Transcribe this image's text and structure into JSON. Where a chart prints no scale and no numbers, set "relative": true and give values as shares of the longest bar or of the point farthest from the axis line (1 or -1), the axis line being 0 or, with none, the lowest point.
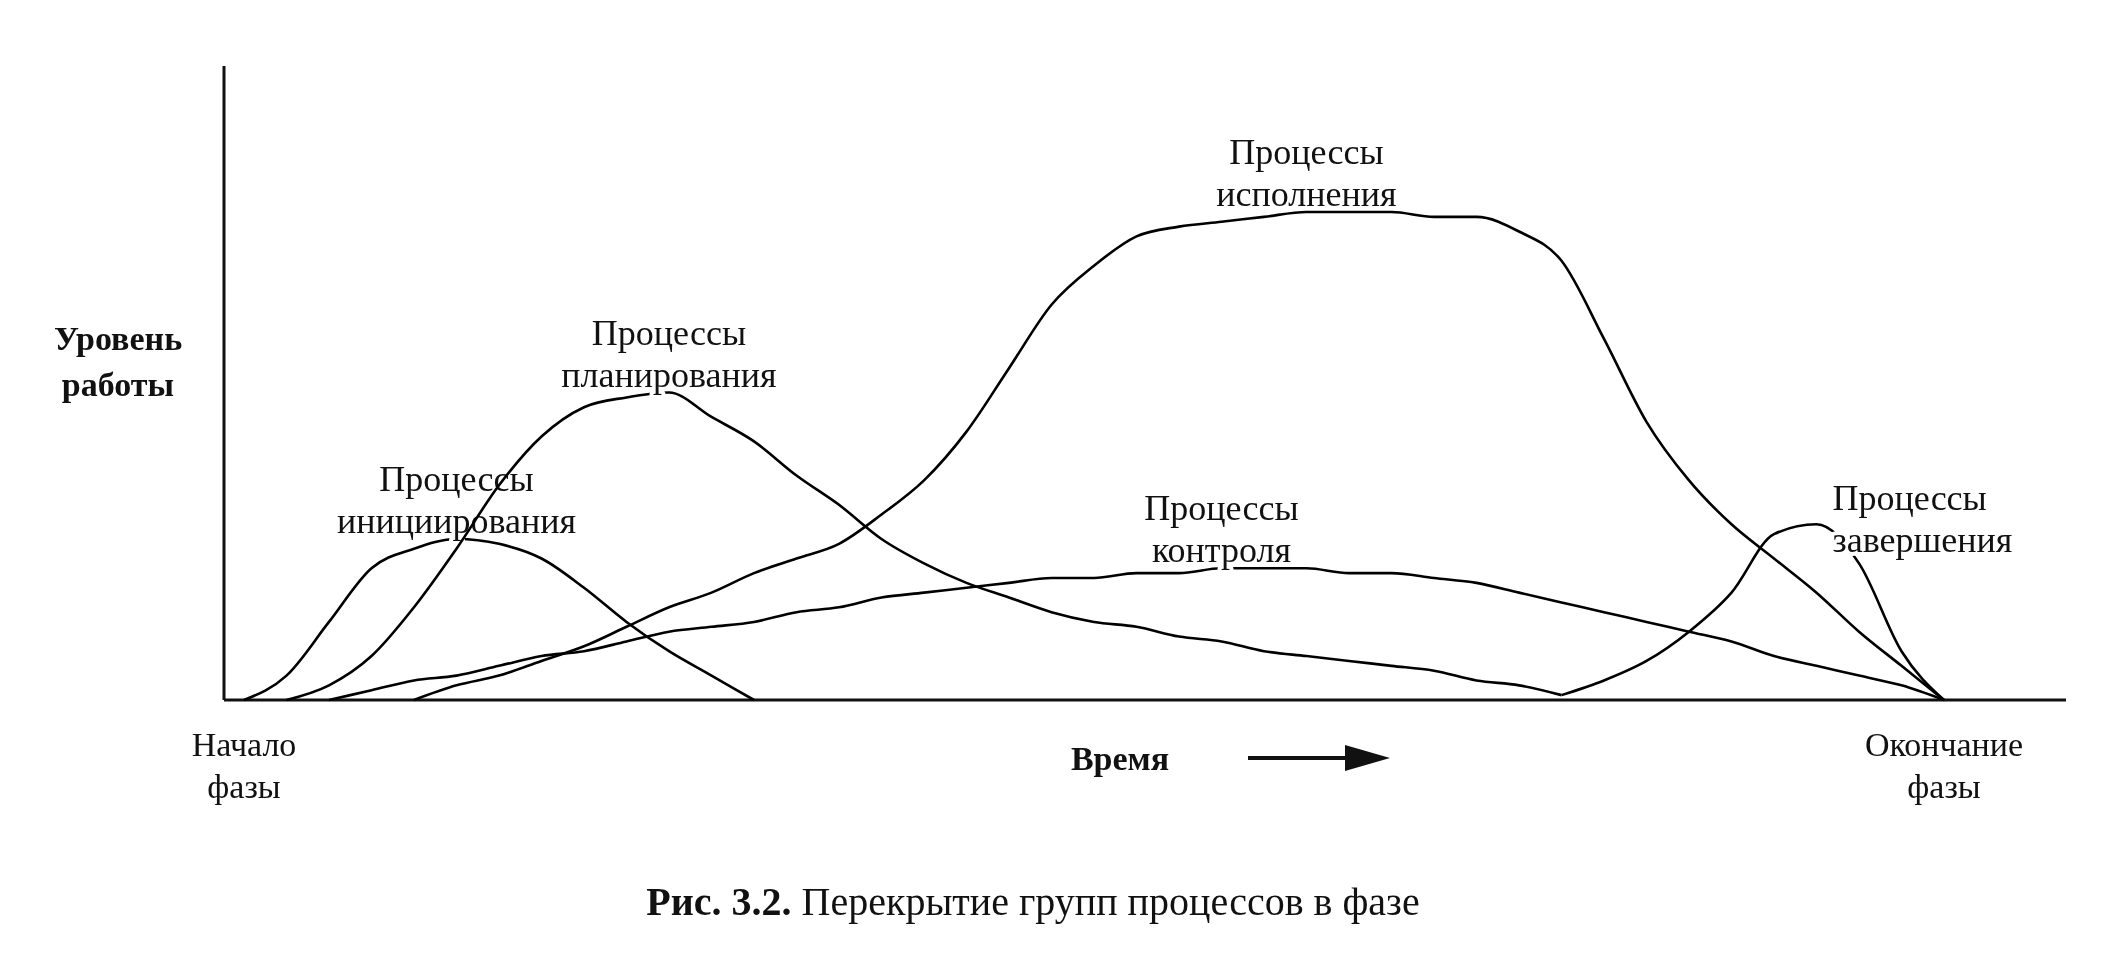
{
  "chart_data": {
    "type": "line",
    "relative": true,
    "title": "Рис. 3.2. Перекрытие групп процессов в фазе",
    "xlabel": "Время",
    "ylabel": "Уровень работы",
    "legend": false,
    "grid": false,
    "marker": "none",
    "line_style": "solid",
    "categories": [
      "Начало фазы",
      null,
      null,
      null,
      null,
      null,
      null,
      null,
      null,
      null,
      null,
      null,
      null,
      null,
      null,
      null,
      null,
      null,
      null,
      null,
      null,
      null,
      null,
      null,
      null,
      null,
      null,
      null,
      null,
      null,
      null,
      null,
      null,
      null,
      null,
      null,
      null,
      null,
      null,
      null,
      "Окончание фазы"
    ],
    "series": [
      {
        "name": "Процессы инициирования",
        "color": "#000000",
        "values": [
          0,
          0.05,
          0.16,
          0.27,
          0.31,
          0.33,
          0.32,
          0.29,
          0.23,
          0.16,
          0.1,
          0.05,
          0,
          null,
          null,
          null,
          null,
          null,
          null,
          null,
          null,
          null,
          null,
          null,
          null,
          null,
          null,
          null,
          null,
          null,
          null,
          null,
          null,
          null,
          null,
          null,
          null,
          null,
          null,
          null,
          null
        ]
      },
      {
        "name": "Процессы планирования",
        "color": "#000000",
        "values": [
          null,
          0,
          0.03,
          0.09,
          0.19,
          0.31,
          0.44,
          0.54,
          0.6,
          0.62,
          0.63,
          0.58,
          0.53,
          0.46,
          0.4,
          0.33,
          0.28,
          0.24,
          0.21,
          0.18,
          0.16,
          0.15,
          0.13,
          0.12,
          0.1,
          0.09,
          0.08,
          0.07,
          0.06,
          0.04,
          0.03,
          0.01,
          null,
          null,
          null,
          null,
          null,
          null,
          null,
          null,
          null
        ]
      },
      {
        "name": "Процессы исполнения",
        "color": "#000000",
        "values": [
          null,
          null,
          null,
          null,
          0,
          0.03,
          0.05,
          0.08,
          0.11,
          0.15,
          0.19,
          0.22,
          0.26,
          0.29,
          0.32,
          0.38,
          0.45,
          0.55,
          0.68,
          0.81,
          0.89,
          0.95,
          0.97,
          0.98,
          0.99,
          1,
          1,
          1,
          0.99,
          0.99,
          0.96,
          0.9,
          0.74,
          0.57,
          0.45,
          0.36,
          0.29,
          0.22,
          0.14,
          0.07,
          0
        ]
      },
      {
        "name": "Процессы контроля",
        "color": "#000000",
        "values": [
          null,
          null,
          0,
          0.02,
          0.04,
          0.05,
          0.07,
          0.09,
          0.1,
          0.12,
          0.14,
          0.15,
          0.16,
          0.18,
          0.19,
          0.21,
          0.22,
          0.23,
          0.24,
          0.25,
          0.25,
          0.26,
          0.26,
          0.27,
          0.27,
          0.27,
          0.26,
          0.26,
          0.25,
          0.24,
          0.22,
          0.2,
          0.18,
          0.16,
          0.14,
          0.12,
          0.09,
          0.07,
          0.05,
          0.03,
          0
        ]
      },
      {
        "name": "Процессы завершения",
        "color": "#000000",
        "values": [
          null,
          null,
          null,
          null,
          null,
          null,
          null,
          null,
          null,
          null,
          null,
          null,
          null,
          null,
          null,
          null,
          null,
          null,
          null,
          null,
          null,
          null,
          null,
          null,
          null,
          null,
          null,
          null,
          null,
          null,
          null,
          0.01,
          0.04,
          0.08,
          0.14,
          0.22,
          0.34,
          0.36,
          0.28,
          0.1,
          0
        ]
      }
    ]
  }
}
